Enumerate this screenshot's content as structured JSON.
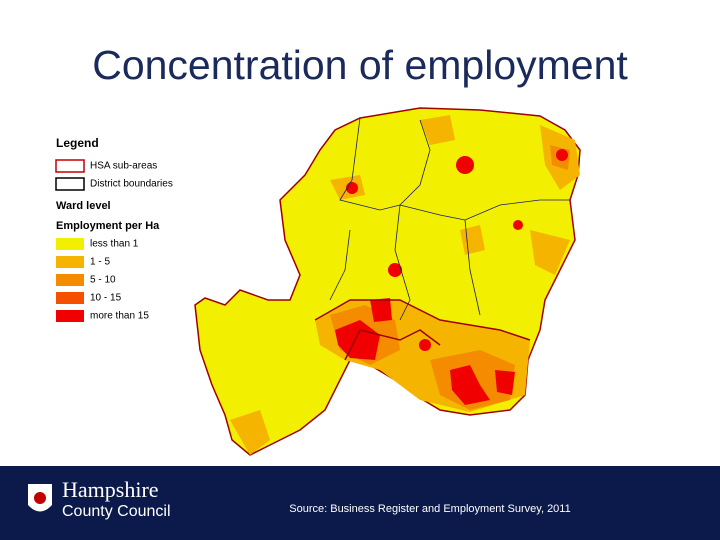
{
  "title": "Concentration of employment",
  "legend": {
    "title": "Legend",
    "boundaries": [
      {
        "label": "HSA sub-areas",
        "color": "#c00000"
      },
      {
        "label": "District boundaries",
        "color": "#000000"
      }
    ],
    "section": "Ward level",
    "subtitle": "Employment per Ha",
    "classes": [
      {
        "label": "less than 1",
        "color": "#f2f000"
      },
      {
        "label": "1 - 5",
        "color": "#f5b400"
      },
      {
        "label": "5 - 10",
        "color": "#f58c00"
      },
      {
        "label": "10 - 15",
        "color": "#f55000"
      },
      {
        "label": "more than 15",
        "color": "#f00000"
      }
    ]
  },
  "footer": {
    "logo_line1": "Hampshire",
    "logo_line2": "County Council",
    "source": "Source: Business Register and Employment Survey, 2011"
  }
}
